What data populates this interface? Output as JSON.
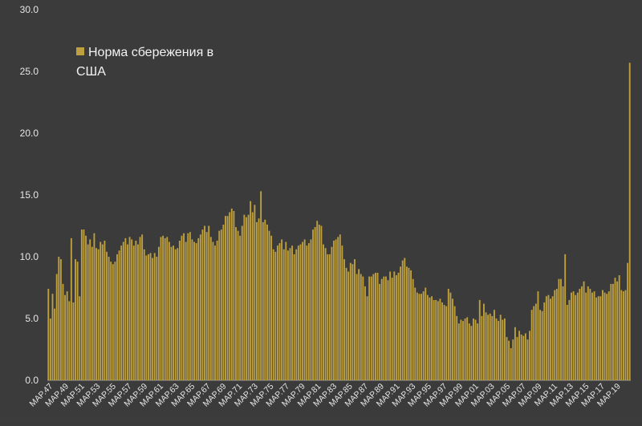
{
  "colors": {
    "background": "#3b3b3b",
    "bar": "#bfa03f",
    "text": "#e6e6e6",
    "axis": "#9a9a9a"
  },
  "chart_data": {
    "type": "bar",
    "title": "",
    "xlabel": "",
    "ylabel": "",
    "ylim": [
      0,
      30
    ],
    "y_ticks": [
      "0.0",
      "5.0",
      "10.0",
      "15.0",
      "20.0",
      "25.0",
      "30.0"
    ],
    "x_tick_labels": [
      "MAP.47",
      "MAP.49",
      "MAP.51",
      "MAP.53",
      "MAP.55",
      "MAP.57",
      "MAP.59",
      "MAP.61",
      "MAP.63",
      "MAP.65",
      "MAP.67",
      "MAP.69",
      "MAP.71",
      "MAP.73",
      "MAP.75",
      "MAP.77",
      "MAP.79",
      "MAP.81",
      "MAP.83",
      "MAP.85",
      "MAP.87",
      "MAP.89",
      "MAP.91",
      "MAP.93",
      "MAP.95",
      "MAP.97",
      "MAP.99",
      "MAP.01",
      "MAP.03",
      "MAP.05",
      "MAP.07",
      "MAP.09",
      "MAP.11",
      "MAP.13",
      "MAP.15",
      "MAP.17",
      "MAP.19"
    ],
    "grid": false,
    "legend_position": "top-left",
    "series": [
      {
        "name": "Норма сбережения в США",
        "values": [
          7.4,
          5.0,
          7.0,
          5.8,
          8.6,
          10.0,
          9.8,
          7.8,
          6.9,
          7.2,
          6.4,
          11.5,
          6.3,
          9.8,
          9.6,
          6.8,
          12.2,
          12.2,
          11.7,
          11.0,
          11.4,
          10.8,
          11.9,
          10.7,
          10.6,
          11.2,
          11.0,
          11.3,
          10.4,
          10.0,
          9.6,
          9.4,
          9.6,
          10.2,
          10.5,
          10.9,
          11.2,
          11.5,
          11.0,
          11.6,
          11.4,
          10.9,
          11.3,
          11.0,
          11.6,
          11.8,
          10.6,
          10.1,
          10.2,
          10.3,
          9.9,
          10.3,
          10.0,
          10.8,
          11.6,
          11.7,
          11.5,
          11.6,
          11.2,
          10.8,
          10.9,
          10.6,
          10.7,
          11.3,
          11.7,
          11.9,
          11.2,
          11.9,
          12.0,
          11.4,
          11.2,
          11.1,
          11.5,
          11.8,
          12.2,
          12.5,
          12.0,
          12.5,
          11.6,
          11.2,
          10.9,
          11.3,
          12.1,
          12.2,
          12.6,
          13.3,
          13.3,
          13.6,
          13.9,
          13.7,
          12.4,
          12.1,
          11.7,
          12.5,
          13.4,
          13.2,
          13.4,
          14.5,
          13.6,
          14.2,
          12.8,
          13.1,
          15.3,
          12.8,
          13.0,
          12.6,
          12.1,
          11.7,
          10.6,
          10.4,
          10.9,
          11.1,
          11.4,
          10.6,
          11.2,
          10.5,
          10.7,
          10.9,
          10.2,
          10.6,
          10.9,
          11.0,
          11.2,
          11.4,
          10.9,
          11.1,
          11.4,
          12.2,
          12.4,
          12.9,
          12.6,
          12.5,
          11.0,
          10.7,
          10.2,
          10.2,
          10.8,
          11.3,
          11.4,
          11.6,
          11.8,
          10.9,
          9.8,
          9.1,
          8.8,
          9.5,
          9.4,
          9.8,
          8.6,
          9.0,
          8.6,
          8.4,
          7.6,
          6.8,
          8.4,
          8.4,
          8.6,
          8.7,
          8.7,
          7.8,
          8.2,
          8.4,
          8.4,
          8.1,
          8.8,
          8.3,
          8.8,
          8.5,
          8.7,
          9.2,
          9.7,
          9.9,
          9.2,
          9.1,
          8.9,
          8.2,
          7.5,
          7.1,
          7.0,
          7.0,
          7.2,
          7.5,
          6.9,
          6.7,
          6.8,
          6.5,
          6.5,
          6.4,
          6.6,
          6.3,
          6.1,
          6.0,
          7.4,
          7.1,
          6.6,
          6.0,
          5.2,
          4.6,
          4.9,
          4.8,
          5.0,
          5.1,
          4.6,
          4.4,
          5.0,
          4.9,
          4.6,
          6.5,
          5.2,
          6.2,
          5.5,
          5.3,
          5.4,
          5.2,
          5.7,
          5.0,
          4.8,
          5.3,
          4.9,
          5.0,
          3.5,
          3.2,
          2.6,
          3.3,
          4.3,
          3.5,
          4.0,
          3.7,
          3.6,
          3.8,
          3.3,
          4.0,
          5.7,
          6.0,
          6.2,
          7.2,
          5.7,
          5.6,
          6.3,
          6.8,
          6.9,
          6.6,
          6.8,
          7.3,
          7.4,
          8.2,
          8.2,
          7.6,
          10.2,
          6.1,
          6.5,
          7.1,
          7.2,
          6.9,
          7.1,
          7.4,
          7.6,
          8.0,
          7.1,
          7.6,
          7.4,
          7.1,
          7.2,
          6.7,
          6.8,
          6.8,
          7.3,
          7.1,
          7.0,
          7.2,
          7.8,
          7.8,
          8.3,
          8.0,
          8.5,
          7.3,
          7.2,
          7.3,
          9.5,
          25.7
        ]
      }
    ]
  }
}
